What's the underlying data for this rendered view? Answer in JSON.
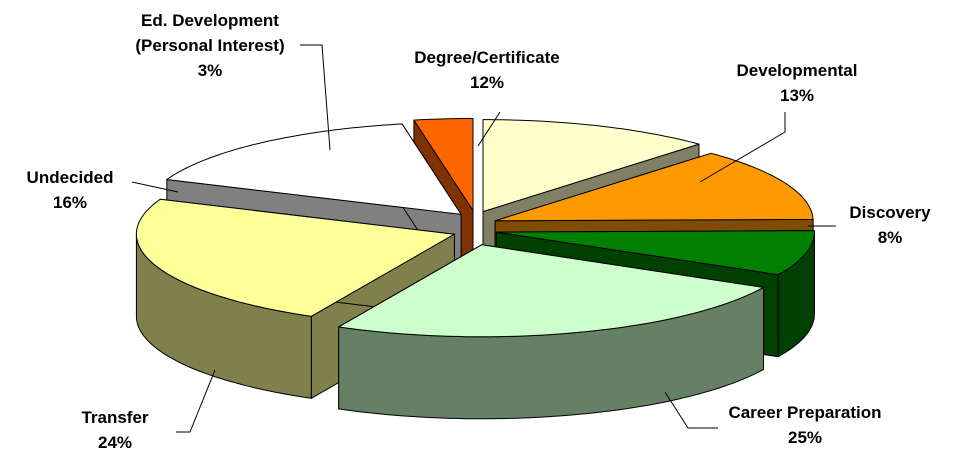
{
  "chart_data": {
    "type": "pie3d",
    "categories": [
      "Ed. Development (Personal Interest)",
      "Degree/Certificate",
      "Developmental",
      "Discovery",
      "Career Preparation",
      "Transfer",
      "Undecided"
    ],
    "values": [
      3,
      12,
      13,
      8,
      25,
      24,
      16
    ],
    "value_labels": [
      "3%",
      "12%",
      "13%",
      "8%",
      "25%",
      "24%",
      "16%"
    ],
    "colors": [
      "#ff6600",
      "#ffffcc",
      "#ff9900",
      "#008000",
      "#ccffcc",
      "#ffff99",
      "#ffffff"
    ]
  }
}
